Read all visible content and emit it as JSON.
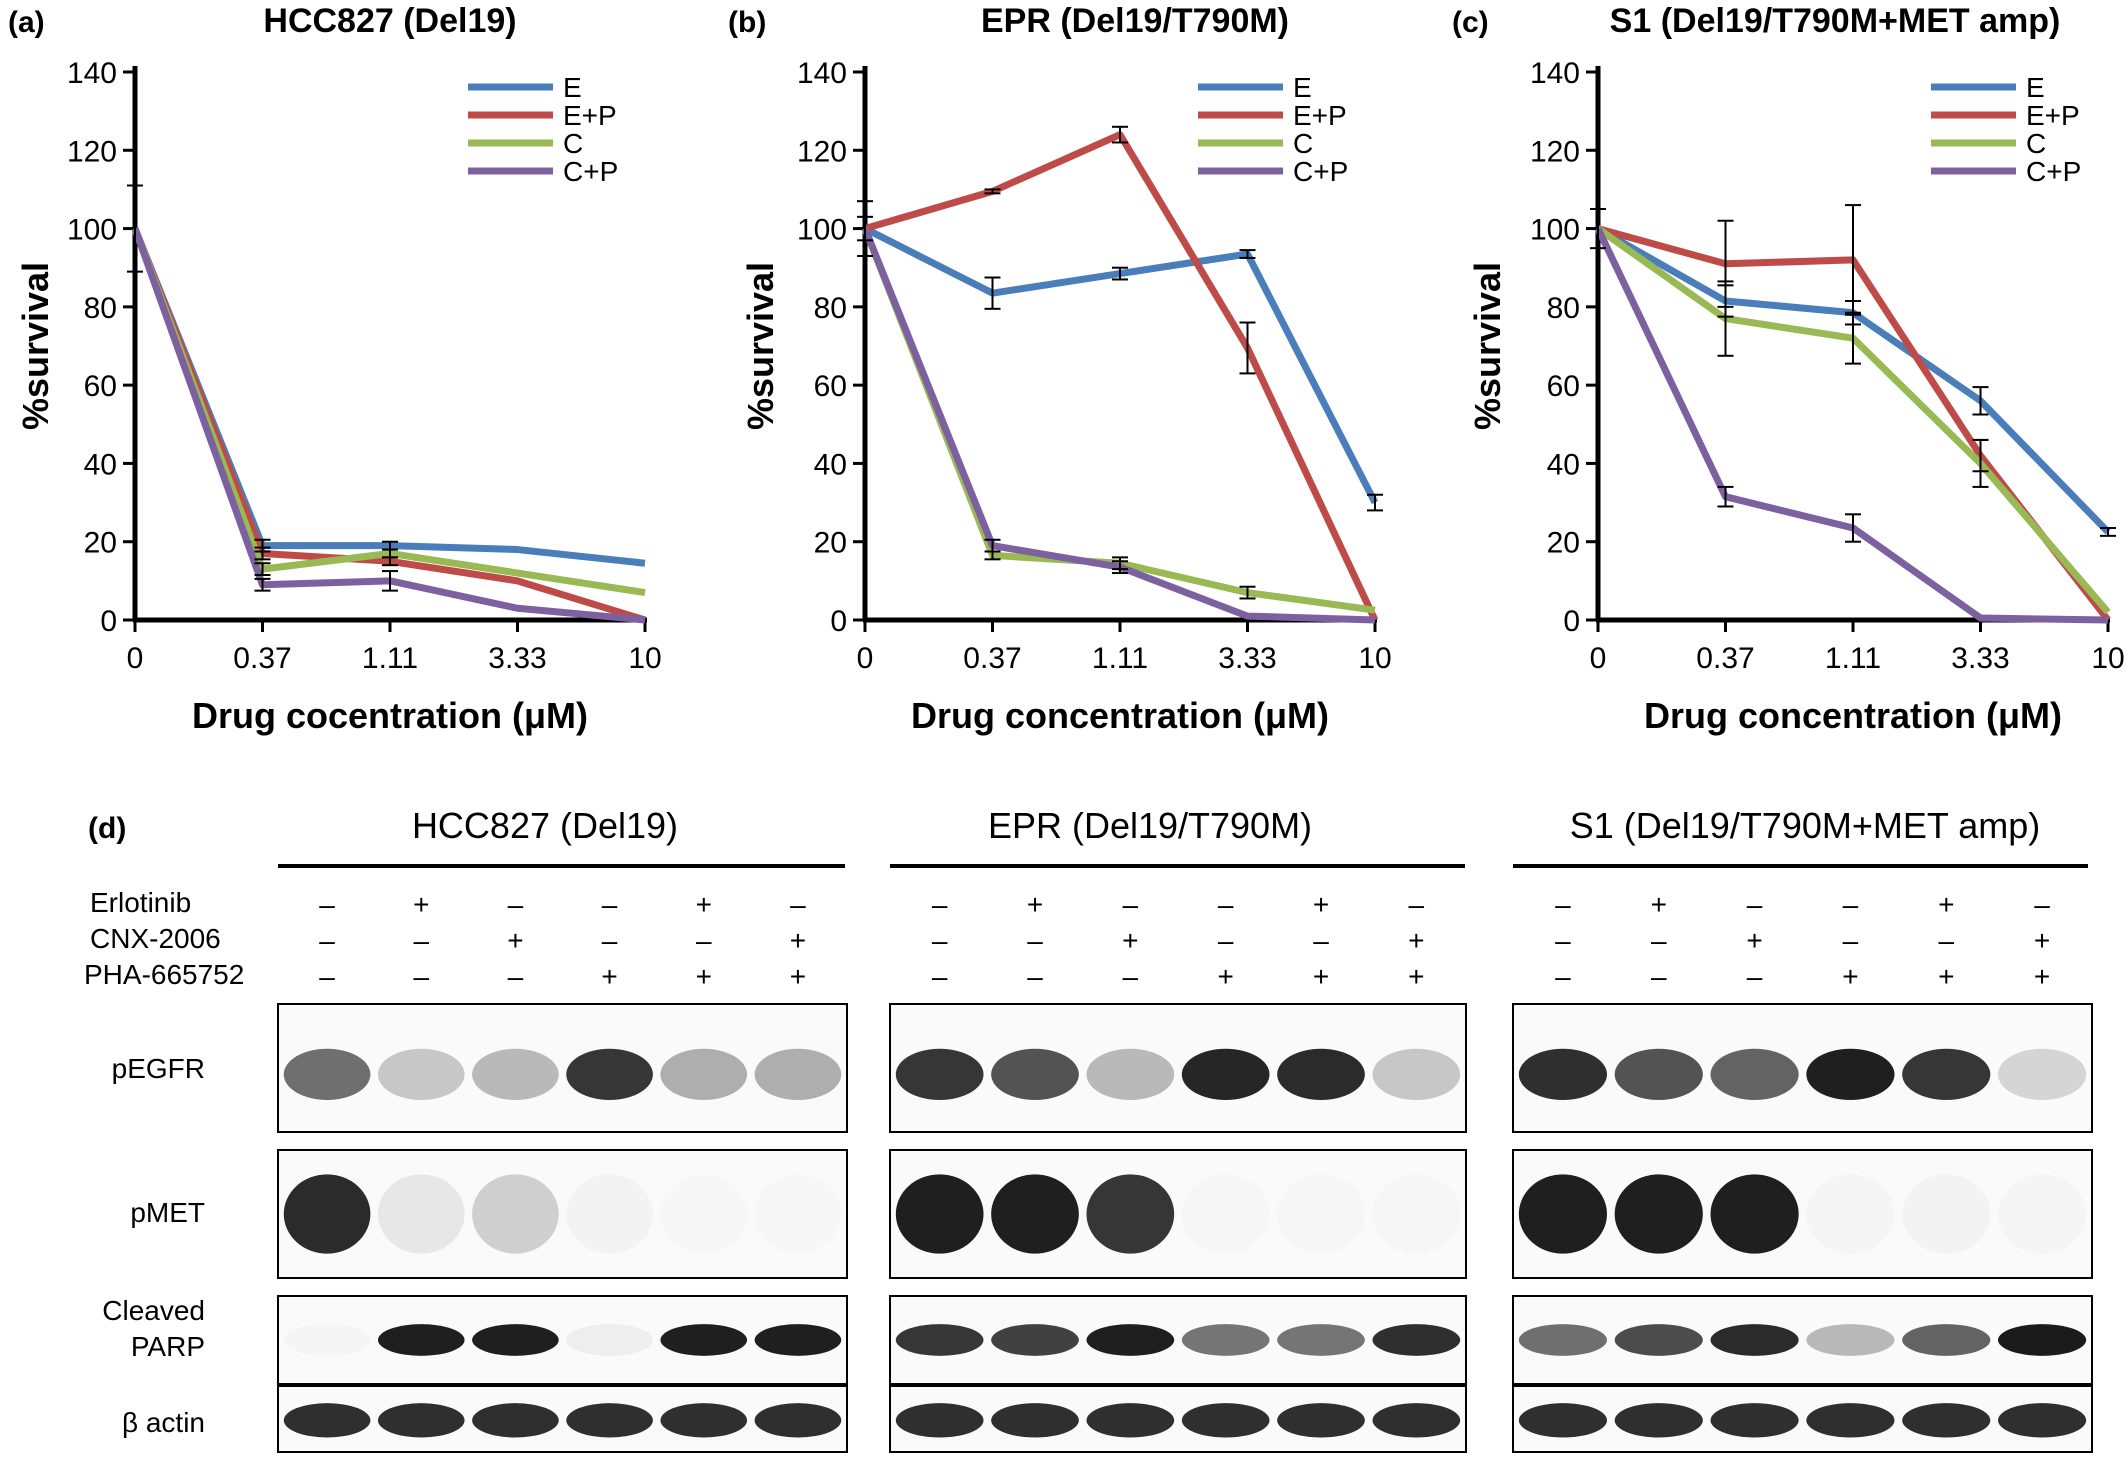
{
  "chart_data": [
    {
      "type": "line",
      "panel_letter": "(a)",
      "title": "HCC827 (Del19)",
      "xlabel": "Drug cocentration (μM)",
      "ylabel": "%survival",
      "categories": [
        "0",
        "0.37",
        "1.11",
        "3.33",
        "10"
      ],
      "ylim": [
        0,
        140
      ],
      "yticks": [
        0,
        20,
        40,
        60,
        80,
        100,
        120,
        140
      ],
      "grid": false,
      "legend_position": "top-right",
      "series": [
        {
          "name": "E",
          "color": "#4a7ebb",
          "values": [
            100,
            19,
            19,
            18,
            14.5
          ],
          "errors": [
            0,
            1.5,
            1,
            0,
            0
          ]
        },
        {
          "name": "E+P",
          "color": "#be4b48",
          "values": [
            100,
            17,
            15,
            10,
            0
          ],
          "errors": [
            0,
            1.5,
            1,
            0,
            0
          ]
        },
        {
          "name": "C",
          "color": "#98b954",
          "values": [
            100,
            13,
            17,
            12,
            7
          ],
          "errors": [
            0,
            1.5,
            1,
            0,
            0
          ]
        },
        {
          "name": "C+P",
          "color": "#7d60a0",
          "values": [
            100,
            9,
            10,
            3,
            0
          ],
          "errors": [
            11,
            1.5,
            2.5,
            0,
            0
          ]
        }
      ]
    },
    {
      "type": "line",
      "panel_letter": "(b)",
      "title": "EPR (Del19/T790M)",
      "xlabel": "Drug concentration (μM)",
      "ylabel": "%survival",
      "categories": [
        "0",
        "0.37",
        "1.11",
        "3.33",
        "10"
      ],
      "ylim": [
        0,
        140
      ],
      "yticks": [
        0,
        20,
        40,
        60,
        80,
        100,
        120,
        140
      ],
      "grid": false,
      "legend_position": "top-right",
      "series": [
        {
          "name": "E",
          "color": "#4a7ebb",
          "values": [
            100,
            83.5,
            88.5,
            93.5,
            30
          ],
          "errors": [
            7,
            4,
            1.5,
            1,
            2
          ]
        },
        {
          "name": "E+P",
          "color": "#be4b48",
          "values": [
            100,
            109.5,
            124,
            69.5,
            0
          ],
          "errors": [
            3,
            0.5,
            2,
            6.5,
            0
          ]
        },
        {
          "name": "C",
          "color": "#98b954",
          "values": [
            100,
            16.5,
            14.5,
            7,
            2.5
          ],
          "errors": [
            0,
            1,
            1.5,
            1.5,
            0
          ]
        },
        {
          "name": "C+P",
          "color": "#7d60a0",
          "values": [
            100,
            19,
            13.5,
            1,
            0
          ],
          "errors": [
            0,
            1.5,
            1.5,
            0,
            0
          ]
        }
      ]
    },
    {
      "type": "line",
      "panel_letter": "(c)",
      "title": "S1 (Del19/T790M+MET amp)",
      "xlabel": "Drug concentration (μM)",
      "ylabel": "%survival",
      "categories": [
        "0",
        "0.37",
        "1.11",
        "3.33",
        "10"
      ],
      "ylim": [
        0,
        140
      ],
      "yticks": [
        0,
        20,
        40,
        60,
        80,
        100,
        120,
        140
      ],
      "grid": false,
      "legend_position": "top-right",
      "series": [
        {
          "name": "E",
          "color": "#4a7ebb",
          "values": [
            100,
            81.5,
            78.5,
            56,
            22.5
          ],
          "errors": [
            5,
            4,
            3,
            3.5,
            1
          ]
        },
        {
          "name": "E+P",
          "color": "#be4b48",
          "values": [
            100,
            91,
            92,
            42,
            0
          ],
          "errors": [
            0,
            11,
            14,
            4,
            0
          ]
        },
        {
          "name": "C",
          "color": "#98b954",
          "values": [
            100,
            77,
            72,
            40,
            2
          ],
          "errors": [
            0,
            9.5,
            6.5,
            6,
            0
          ]
        },
        {
          "name": "C+P",
          "color": "#7d60a0",
          "values": [
            100,
            31.5,
            23.5,
            0.5,
            0
          ],
          "errors": [
            0,
            2.5,
            3.5,
            0,
            0
          ]
        }
      ]
    }
  ],
  "blots": {
    "panel_letter": "(d)",
    "treatments": [
      "Erlotinib",
      "CNX-2006",
      "PHA-665752"
    ],
    "lane_signs": [
      [
        "–",
        "+",
        "–",
        "–",
        "+",
        "–"
      ],
      [
        "–",
        "–",
        "+",
        "–",
        "–",
        "+"
      ],
      [
        "–",
        "–",
        "–",
        "+",
        "+",
        "+"
      ]
    ],
    "row_labels": [
      "pEGFR",
      "pMET",
      "Cleaved PARP",
      "β actin"
    ],
    "cell_lines": [
      {
        "title": "HCC827 (Del19)",
        "band_intensity": {
          "pEGFR": [
            0.62,
            0.32,
            0.38,
            0.85,
            0.42,
            0.42
          ],
          "pMET": [
            0.9,
            0.15,
            0.28,
            0.06,
            0.02,
            0.02
          ],
          "Cleaved PARP": [
            0.04,
            0.95,
            0.95,
            0.1,
            0.95,
            0.95
          ],
          "β actin": [
            0.88,
            0.88,
            0.88,
            0.88,
            0.88,
            0.88
          ]
        }
      },
      {
        "title": "EPR (Del19/T790M)",
        "band_intensity": {
          "pEGFR": [
            0.85,
            0.72,
            0.38,
            0.92,
            0.9,
            0.32
          ],
          "pMET": [
            0.95,
            0.95,
            0.85,
            0.03,
            0.03,
            0.03
          ],
          "Cleaved PARP": [
            0.85,
            0.8,
            0.95,
            0.6,
            0.6,
            0.88
          ],
          "β actin": [
            0.88,
            0.88,
            0.88,
            0.88,
            0.88,
            0.88
          ]
        }
      },
      {
        "title": "S1 (Del19/T790M+MET amp)",
        "band_intensity": {
          "pEGFR": [
            0.88,
            0.72,
            0.65,
            0.95,
            0.85,
            0.25
          ],
          "pMET": [
            0.95,
            0.95,
            0.95,
            0.04,
            0.06,
            0.04
          ],
          "Cleaved PARP": [
            0.62,
            0.75,
            0.9,
            0.38,
            0.65,
            0.97
          ],
          "β actin": [
            0.88,
            0.88,
            0.88,
            0.88,
            0.88,
            0.88
          ]
        }
      }
    ]
  }
}
